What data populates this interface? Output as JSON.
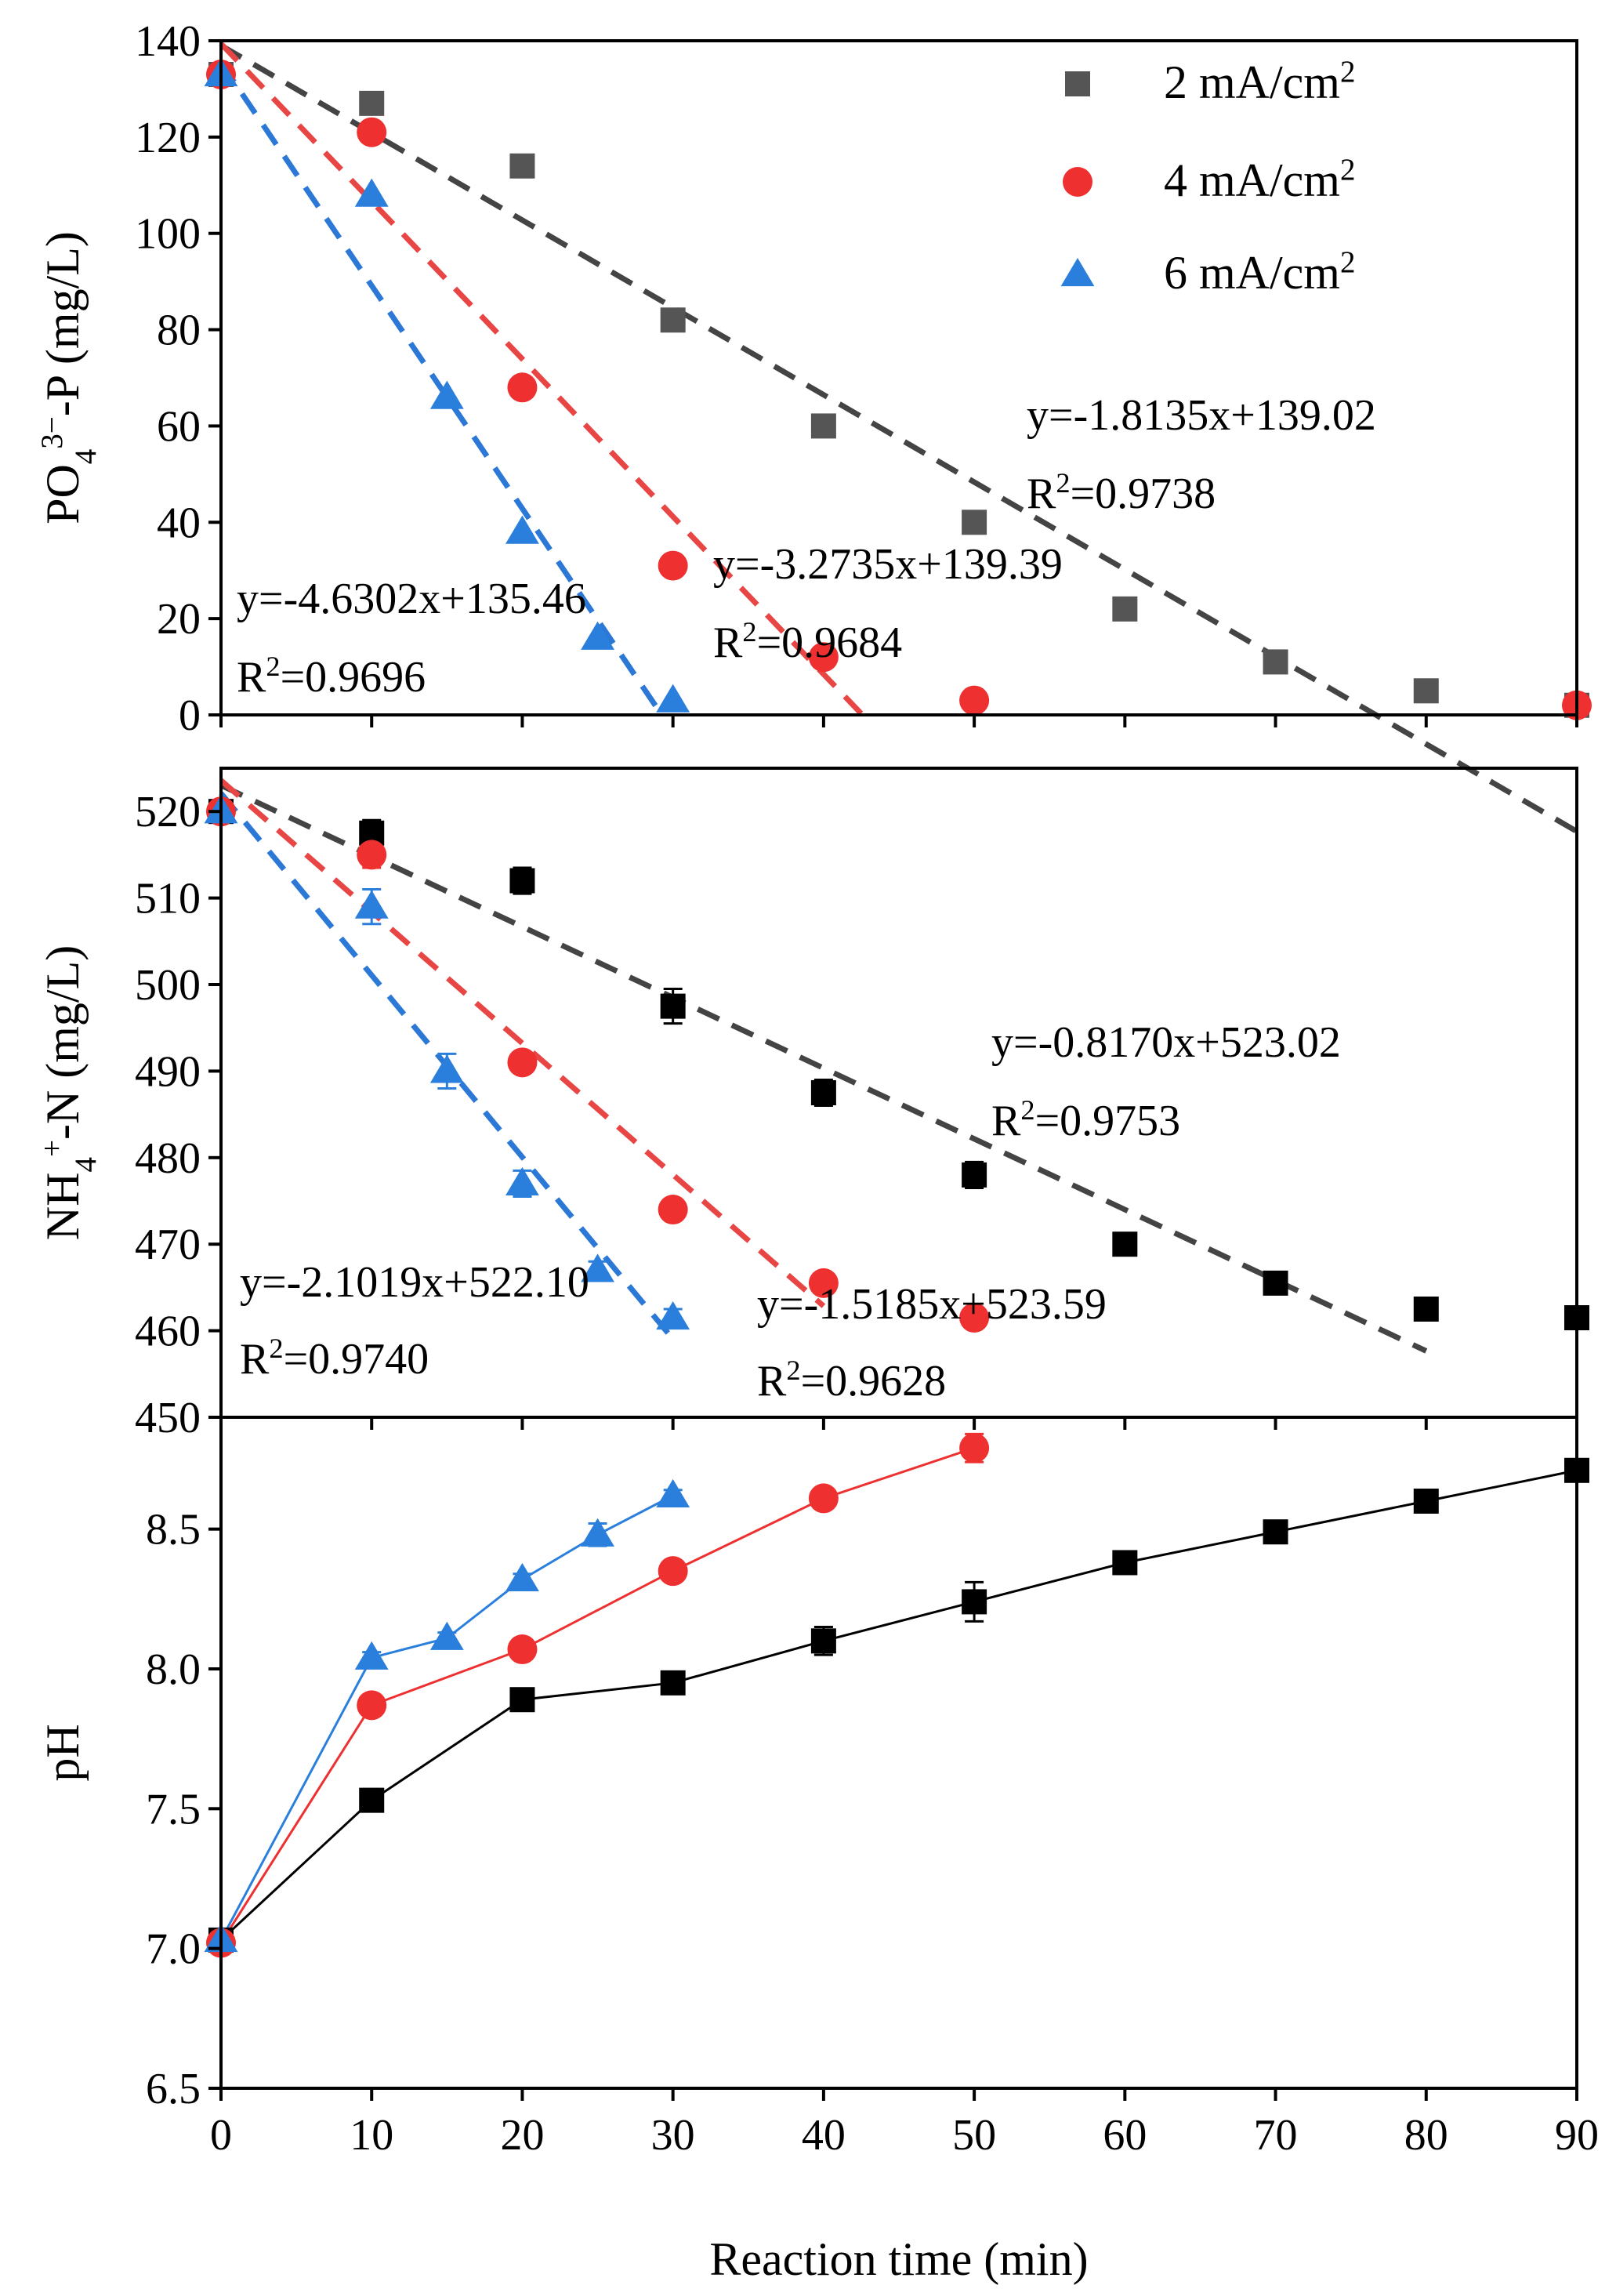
{
  "colors": {
    "series_2mA_top": "#555555",
    "series_2mA": "#000000",
    "series_4mA": "#ee3030",
    "series_6mA": "#2a7fdc",
    "fit_2mA": "#444444",
    "fit_4mA": "#e84545",
    "fit_6mA": "#2b78d6"
  },
  "chart_data": [
    {
      "id": "phosphate",
      "type": "scatter",
      "ylabel_main": "PO",
      "ylabel_sub": "4",
      "ylabel_sup": "3−",
      "ylabel_rest": "-P (mg/L)",
      "xlim": [
        0,
        90
      ],
      "ylim": [
        0,
        140
      ],
      "yticks": [
        "0",
        "20",
        "40",
        "60",
        "80",
        "100",
        "120",
        "140"
      ],
      "legend": {
        "placement": "top-right",
        "entries": [
          {
            "text": "2 mA/cm",
            "sup": "2",
            "marker": "square",
            "color": "#555555"
          },
          {
            "text": "4 mA/cm",
            "sup": "2",
            "marker": "circle",
            "color": "#ee3030"
          },
          {
            "text": "6 mA/cm",
            "sup": "2",
            "marker": "triangle",
            "color": "#2a7fdc"
          }
        ]
      },
      "series": [
        {
          "name": "2 mA/cm2",
          "marker": "square",
          "color": "#555555",
          "x": [
            0,
            10,
            20,
            30,
            40,
            50,
            60,
            70,
            80,
            90
          ],
          "y": [
            133,
            127,
            114,
            82,
            60,
            40,
            22,
            11,
            5,
            2
          ],
          "fit": {
            "slope": -1.8135,
            "intercept": 139.02,
            "x_end": 90
          }
        },
        {
          "name": "4 mA/cm2",
          "marker": "circle",
          "color": "#ee3030",
          "x": [
            0,
            10,
            20,
            30,
            40,
            50,
            90
          ],
          "y": [
            133,
            121,
            68,
            31,
            12,
            3,
            2
          ],
          "fit": {
            "slope": -3.2735,
            "intercept": 139.39,
            "x_end": 42.6
          }
        },
        {
          "name": "6 mA/cm2",
          "marker": "triangle",
          "color": "#2a7fdc",
          "x": [
            0,
            10,
            15,
            20,
            25,
            30
          ],
          "y": [
            133,
            108,
            66,
            38,
            16,
            3
          ],
          "fit": {
            "slope": -4.6302,
            "intercept": 135.46,
            "x_end": 29.3
          }
        }
      ],
      "annotations": [
        {
          "eq": "y=-1.8135x+139.02",
          "r2_label": "R",
          "r2_sup": "2",
          "r2_value": "=0.9738"
        },
        {
          "eq": "y=-3.2735x+139.39",
          "r2_label": "R",
          "r2_sup": "2",
          "r2_value": "=0.9684"
        },
        {
          "eq": "y=-4.6302x+135.46",
          "r2_label": "R",
          "r2_sup": "2",
          "r2_value": "=0.9696"
        }
      ]
    },
    {
      "id": "ammonium",
      "type": "scatter",
      "ylabel_main": "NH",
      "ylabel_sub": "4",
      "ylabel_sup": "+",
      "ylabel_rest": "-N (mg/L)",
      "xlim": [
        0,
        90
      ],
      "ylim": [
        450,
        525
      ],
      "yticks": [
        "450",
        "460",
        "470",
        "480",
        "490",
        "500",
        "510",
        "520"
      ],
      "series": [
        {
          "name": "2 mA/cm2",
          "marker": "square",
          "color": "#000000",
          "x": [
            0,
            10,
            20,
            30,
            40,
            50,
            60,
            70,
            80,
            90
          ],
          "y": [
            520,
            517.5,
            512,
            497.5,
            487.5,
            478,
            470,
            465.5,
            462.5,
            461.5
          ],
          "err": [
            1,
            1.5,
            1.5,
            2,
            1.5,
            1.5,
            1,
            1,
            1,
            1
          ],
          "fit": {
            "slope": -0.817,
            "intercept": 523.02,
            "x_end": 80
          }
        },
        {
          "name": "4 mA/cm2",
          "marker": "circle",
          "color": "#ee3030",
          "x": [
            0,
            10,
            20,
            30,
            40,
            50
          ],
          "y": [
            520,
            515,
            491,
            474,
            465.5,
            461.5
          ],
          "err": [
            1,
            1.5,
            1,
            1,
            1,
            1
          ],
          "fit": {
            "slope": -1.5185,
            "intercept": 523.59,
            "x_end": 40
          }
        },
        {
          "name": "6 mA/cm2",
          "marker": "triangle",
          "color": "#2a7fdc",
          "x": [
            0,
            10,
            15,
            20,
            25,
            30
          ],
          "y": [
            520,
            509,
            490,
            477,
            467,
            461.5
          ],
          "err": [
            1,
            2,
            2,
            1.5,
            1,
            1
          ],
          "fit": {
            "slope": -2.1019,
            "intercept": 522.1,
            "x_end": 30
          }
        }
      ],
      "annotations": [
        {
          "eq": "y=-0.8170x+523.02",
          "r2_label": "R",
          "r2_sup": "2",
          "r2_value": "=0.9753"
        },
        {
          "eq": "y=-1.5185x+523.59",
          "r2_label": "R",
          "r2_sup": "2",
          "r2_value": "=0.9628"
        },
        {
          "eq": "y=-2.1019x+522.10",
          "r2_label": "R",
          "r2_sup": "2",
          "r2_value": "=0.9740"
        }
      ]
    },
    {
      "id": "ph",
      "type": "line",
      "ylabel": "pH",
      "xlabel": "Reaction time (min)",
      "xlim": [
        0,
        90
      ],
      "ylim": [
        6.5,
        8.9
      ],
      "xticks": [
        "0",
        "10",
        "20",
        "30",
        "40",
        "50",
        "60",
        "70",
        "80",
        "90"
      ],
      "yticks": [
        "6.5",
        "7.0",
        "7.5",
        "8.0",
        "8.5"
      ],
      "series": [
        {
          "name": "2 mA/cm2",
          "marker": "square",
          "color": "#000000",
          "x": [
            0,
            10,
            20,
            30,
            40,
            50,
            60,
            70,
            80,
            90
          ],
          "y": [
            7.03,
            7.53,
            7.89,
            7.95,
            8.1,
            8.24,
            8.38,
            8.49,
            8.6,
            8.71
          ],
          "err": [
            0.02,
            0.04,
            0.02,
            0.02,
            0.05,
            0.07,
            0.02,
            0.04,
            0.02,
            0.02
          ]
        },
        {
          "name": "4 mA/cm2",
          "marker": "circle",
          "color": "#ee3030",
          "x": [
            0,
            10,
            20,
            30,
            40,
            50
          ],
          "y": [
            7.02,
            7.87,
            8.07,
            8.35,
            8.61,
            8.79
          ],
          "err": [
            0.02,
            0.02,
            0.02,
            0.02,
            0.02,
            0.05
          ]
        },
        {
          "name": "6 mA/cm2",
          "marker": "triangle",
          "color": "#2a7fdc",
          "x": [
            0,
            10,
            15,
            20,
            25,
            30
          ],
          "y": [
            7.03,
            8.04,
            8.11,
            8.32,
            8.48,
            8.62
          ],
          "err": [
            0.02,
            0.02,
            0.02,
            0.02,
            0.04,
            0.02
          ]
        }
      ]
    }
  ]
}
